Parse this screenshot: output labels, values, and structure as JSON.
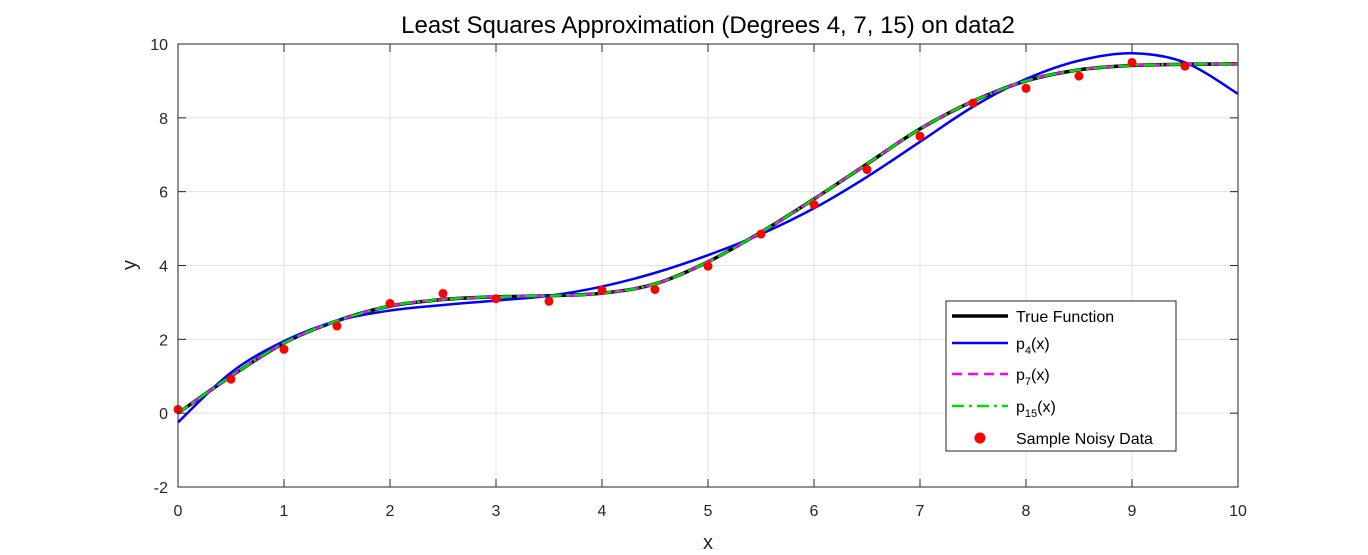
{
  "chart_data": {
    "type": "line",
    "title": "Least Squares Approximation (Degrees 4, 7, 15) on data2",
    "xlabel": "x",
    "ylabel": "y",
    "xlim": [
      0,
      10
    ],
    "ylim": [
      -2,
      10
    ],
    "grid": true,
    "legend_position": "bottom-right",
    "x_ticks": [
      0,
      1,
      2,
      3,
      4,
      5,
      6,
      7,
      8,
      9,
      10
    ],
    "y_ticks": [
      -2,
      0,
      2,
      4,
      6,
      8,
      10
    ],
    "x_tick_labels": [
      "0",
      "1",
      "2",
      "3",
      "4",
      "5",
      "6",
      "7",
      "8",
      "9",
      "10"
    ],
    "y_tick_labels": [
      "-2",
      "0",
      "2",
      "4",
      "6",
      "8",
      "10"
    ],
    "x": [
      0,
      0.5,
      1,
      1.5,
      2,
      2.5,
      3,
      3.5,
      4,
      4.5,
      5,
      5.5,
      6,
      6.5,
      7,
      7.5,
      8,
      8.5,
      9,
      9.5,
      10
    ],
    "series": [
      {
        "name": "True Function",
        "style": "solid",
        "color": "#000000",
        "values": [
          0.0,
          1.0,
          1.9,
          2.5,
          2.9,
          3.08,
          3.15,
          3.18,
          3.25,
          3.5,
          4.1,
          4.9,
          5.8,
          6.75,
          7.7,
          8.45,
          9.0,
          9.3,
          9.42,
          9.45,
          9.46
        ]
      },
      {
        "name": "p_4(x)",
        "style": "solid",
        "color": "#0000ff",
        "values": [
          -0.25,
          1.1,
          1.95,
          2.5,
          2.78,
          2.93,
          3.05,
          3.18,
          3.43,
          3.8,
          4.28,
          4.85,
          5.55,
          6.4,
          7.35,
          8.3,
          9.05,
          9.55,
          9.75,
          9.5,
          8.65
        ]
      },
      {
        "name": "p_7(x)",
        "style": "dashed",
        "color": "#ff00ff",
        "values": [
          0.0,
          1.0,
          1.9,
          2.5,
          2.9,
          3.08,
          3.15,
          3.18,
          3.25,
          3.5,
          4.1,
          4.9,
          5.8,
          6.75,
          7.7,
          8.45,
          9.0,
          9.3,
          9.42,
          9.45,
          9.46
        ]
      },
      {
        "name": "p_15(x)",
        "style": "dashdot",
        "color": "#00dd00",
        "values": [
          0.0,
          1.0,
          1.9,
          2.5,
          2.9,
          3.08,
          3.15,
          3.18,
          3.25,
          3.5,
          4.1,
          4.9,
          5.8,
          6.75,
          7.7,
          8.45,
          9.0,
          9.3,
          9.42,
          9.45,
          9.46
        ]
      }
    ],
    "scatter": {
      "name": "Sample Noisy Data",
      "color": "#ff0000",
      "x": [
        0,
        0.5,
        1,
        1.5,
        2,
        2.5,
        3,
        3.5,
        4,
        4.5,
        5,
        5.5,
        6,
        6.5,
        7,
        7.5,
        8,
        8.5,
        9,
        9.5
      ],
      "y": [
        0.1,
        0.92,
        1.73,
        2.36,
        2.97,
        3.24,
        3.1,
        3.03,
        3.33,
        3.35,
        3.98,
        4.85,
        5.65,
        6.6,
        7.5,
        8.4,
        8.8,
        9.13,
        9.5,
        9.4
      ]
    },
    "legend": {
      "entries": [
        {
          "text": "True Function",
          "sub": "",
          "tail": ""
        },
        {
          "text": "p",
          "sub": "4",
          "tail": "(x)"
        },
        {
          "text": "p",
          "sub": "7",
          "tail": "(x)"
        },
        {
          "text": "p",
          "sub": "15",
          "tail": "(x)"
        },
        {
          "text": "Sample Noisy Data",
          "sub": "",
          "tail": ""
        }
      ]
    }
  }
}
